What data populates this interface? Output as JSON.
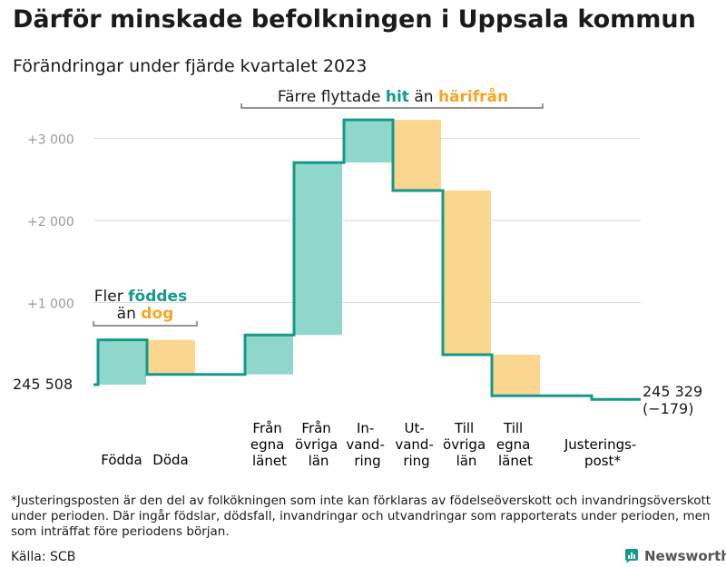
{
  "title": "Därför minskade befolkningen i Uppsala kommun",
  "subtitle": "Förändringar under fjärde kvartalet 2023",
  "colors": {
    "increase": "#8fd6cb",
    "decrease": "#fad68f",
    "line": "#16998a",
    "teal_text": "#16998a",
    "orange_text": "#f5a623",
    "grid": "#dddddd",
    "axis_text": "#9a9a9a"
  },
  "chart_data": {
    "type": "waterfall",
    "title": "Därför minskade befolkningen i Uppsala kommun",
    "subtitle": "Förändringar under fjärde kvartalet 2023",
    "start_label": "245  508",
    "start_value": 245508,
    "end_label": "245 329",
    "end_change_label": "(−179)",
    "end_value": 245329,
    "baseline_offset": 0,
    "ylim": [
      -200,
      3300
    ],
    "yticks": [
      {
        "value": 1000,
        "label": "+1  000"
      },
      {
        "value": 2000,
        "label": "+2  000"
      },
      {
        "value": 3000,
        "label": "+3  000"
      }
    ],
    "steps": [
      {
        "label": "Födda",
        "change": 545,
        "type": "increase"
      },
      {
        "label": "Döda",
        "change": -420,
        "type": "decrease"
      },
      {
        "label": "Från egna länet",
        "change": 480,
        "type": "increase"
      },
      {
        "label": "Från övriga län",
        "change": 2100,
        "type": "increase"
      },
      {
        "label": "In- vand- ring",
        "change": 520,
        "type": "increase"
      },
      {
        "label": "Ut- vand- ring",
        "change": -860,
        "type": "decrease"
      },
      {
        "label": "Till övriga län",
        "change": -2000,
        "type": "decrease"
      },
      {
        "label": "Till egna länet",
        "change": -500,
        "type": "decrease"
      },
      {
        "label": "Justerings- post*",
        "change": -44,
        "type": "adjustment"
      }
    ]
  },
  "annotations": {
    "births": {
      "line1": "Fler",
      "teal": "föddes",
      "line2a": "än",
      "orange": "dog"
    },
    "migration": {
      "pre": "Färre flyttade",
      "teal": "hit",
      "mid": "än",
      "orange": "härifrån"
    }
  },
  "x_labels": {
    "fodda": "Födda",
    "doda": "Döda",
    "fran_egna": [
      "Från",
      "egna",
      "länet"
    ],
    "fran_ovriga": [
      "Från",
      "övriga",
      "län"
    ],
    "invandring": [
      "In-",
      "vand-",
      "ring"
    ],
    "utvandring": [
      "Ut-",
      "vand-",
      "ring"
    ],
    "till_ovriga": [
      "Till",
      "övriga",
      "län"
    ],
    "till_egna": [
      "Till",
      "egna",
      "länet"
    ],
    "justering": [
      "Justerings-",
      "post*"
    ]
  },
  "footnote": "*Justeringsposten är den del av folkökningen som inte kan förklaras av födelseöverskott och invandringsöverskott under perioden. Där ingår födslar, dödsfall, invandringar och utvandringar som rapporterats under perioden, men som inträffat före periodens början.",
  "source": "Källa: SCB",
  "brand": "Newsworthy"
}
